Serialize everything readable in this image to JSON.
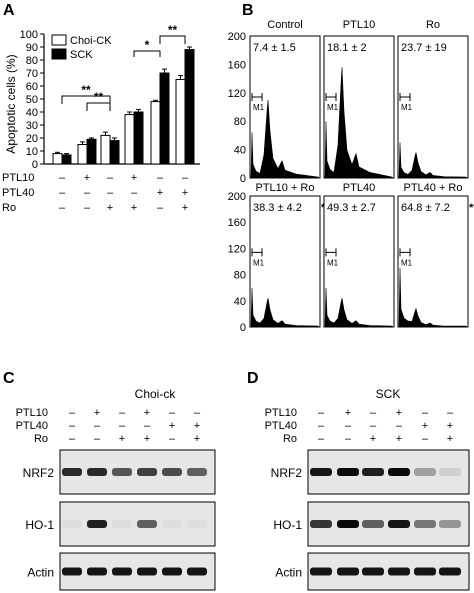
{
  "panels": {
    "A": {
      "letter": "A"
    },
    "B": {
      "letter": "B"
    },
    "C": {
      "letter": "C"
    },
    "D": {
      "letter": "D"
    }
  },
  "conditions": {
    "rows": [
      {
        "label": "PTL10",
        "marks": [
          "–",
          "+",
          "–",
          "+",
          "–",
          "–"
        ]
      },
      {
        "label": "PTL40",
        "marks": [
          "–",
          "–",
          "–",
          "–",
          "+",
          "+"
        ]
      },
      {
        "label": "Ro",
        "marks": [
          "–",
          "–",
          "+",
          "+",
          "–",
          "+"
        ]
      }
    ]
  },
  "chart_data": {
    "type": "bar",
    "ylabel": "Apoptotic cells (%)",
    "ylim": [
      0,
      100
    ],
    "yticks": [
      "0",
      "10",
      "20",
      "30",
      "40",
      "50",
      "60",
      "70",
      "80",
      "90",
      "100"
    ],
    "categories": [
      "1",
      "2",
      "3",
      "4",
      "5",
      "6"
    ],
    "series": [
      {
        "name": "Choi-CK",
        "color": "#ffffff",
        "values": [
          8,
          15,
          22,
          38,
          48,
          65
        ],
        "errors": [
          1,
          2,
          2.5,
          2,
          1,
          3
        ]
      },
      {
        "name": "SCK",
        "color": "#000000",
        "values": [
          7,
          19,
          18,
          40,
          70,
          88
        ],
        "errors": [
          1,
          1,
          2,
          2,
          3,
          2
        ]
      }
    ],
    "significance": [
      {
        "label": "**",
        "from": 2,
        "to": 3
      },
      {
        "label": "**",
        "from": 1,
        "to": 3
      },
      {
        "label": "*",
        "from": 4,
        "to": 5
      },
      {
        "label": "**",
        "from": 5,
        "to": 6
      }
    ],
    "grid": false,
    "legend": "top-left"
  },
  "histograms": {
    "yticks": [
      "0",
      "40",
      "80",
      "120",
      "160",
      "200"
    ],
    "gate_label": "M1",
    "top_row": [
      {
        "title": "Control",
        "value": "7.4 ± 1.5",
        "flag": ""
      },
      {
        "title": "PTL10",
        "value": "18.1 ± 2",
        "flag": ""
      },
      {
        "title": "Ro",
        "value": "23.7 ± 19",
        "flag": ""
      }
    ],
    "bottom_row": [
      {
        "title": "PTL10 + Ro",
        "value": "38.3 ± 4.2",
        "flag": "**"
      },
      {
        "title": "PTL40",
        "value": "49.3 ± 2.7",
        "flag": ""
      },
      {
        "title": "PTL40 + Ro",
        "value": "64.8 ± 7.2",
        "flag": "**"
      }
    ]
  },
  "blots": {
    "C": {
      "title": "Choi-ck",
      "rows": [
        {
          "label": "NRF2",
          "intensities": [
            0.85,
            0.85,
            0.65,
            0.75,
            0.7,
            0.6
          ]
        },
        {
          "label": "HO-1",
          "intensities": [
            0.02,
            0.9,
            0.02,
            0.6,
            0.02,
            0.02
          ]
        },
        {
          "label": "Actin",
          "intensities": [
            0.95,
            0.95,
            0.95,
            0.95,
            0.95,
            0.95
          ]
        }
      ]
    },
    "D": {
      "title": "SCK",
      "rows": [
        {
          "label": "NRF2",
          "intensities": [
            0.95,
            1.0,
            0.9,
            1.0,
            0.3,
            0.08
          ]
        },
        {
          "label": "HO-1",
          "intensities": [
            0.8,
            1.0,
            0.6,
            0.95,
            0.5,
            0.35
          ]
        },
        {
          "label": "Actin",
          "intensities": [
            0.95,
            0.95,
            0.95,
            0.95,
            0.95,
            0.95
          ]
        }
      ]
    }
  }
}
